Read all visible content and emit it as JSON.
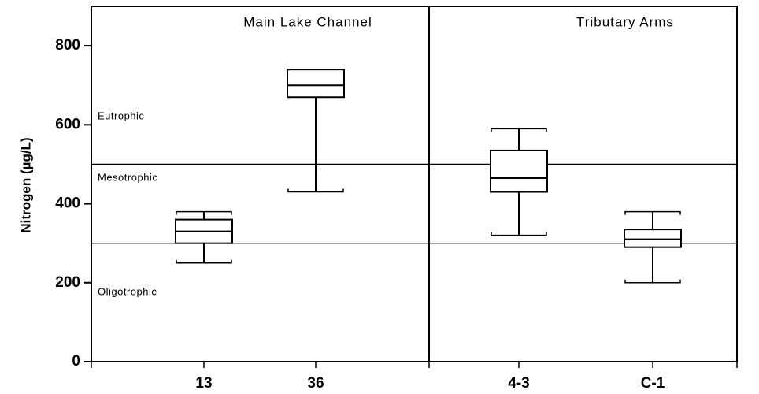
{
  "chart_data": {
    "type": "box",
    "ylabel": "Nitrogen (µg/L)",
    "ylim": [
      0,
      900
    ],
    "yticks": [
      0,
      200,
      400,
      600,
      800
    ],
    "grid": false,
    "reference_lines": [
      300,
      500
    ],
    "zones": [
      {
        "label": "Eutrophic",
        "value": 620
      },
      {
        "label": "Mesotrophic",
        "value": 465
      },
      {
        "label": "Oligotrophic",
        "value": 175
      }
    ],
    "panels": [
      {
        "title": "Main Lake Channel",
        "boxes": [
          {
            "category": "13",
            "whisker_low": 250,
            "q1": 300,
            "median": 330,
            "q3": 360,
            "whisker_high": 380
          },
          {
            "category": "36",
            "whisker_low": 430,
            "q1": 670,
            "median": 700,
            "q3": 740,
            "whisker_high": 740
          }
        ]
      },
      {
        "title": "Tributary Arms",
        "boxes": [
          {
            "category": "4-3",
            "whisker_low": 320,
            "q1": 430,
            "median": 465,
            "q3": 535,
            "whisker_high": 590
          },
          {
            "category": "C-1",
            "whisker_low": 200,
            "q1": 290,
            "median": 310,
            "q3": 335,
            "whisker_high": 380
          }
        ]
      }
    ]
  }
}
